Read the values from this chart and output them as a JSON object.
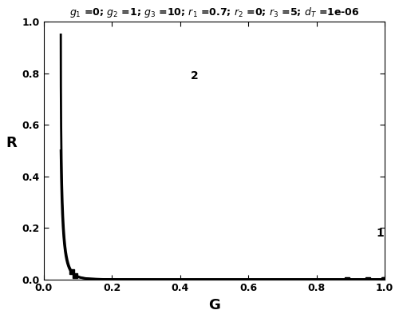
{
  "xlabel": "G",
  "ylabel": "R",
  "xlim": [
    0,
    1
  ],
  "ylim": [
    0,
    1
  ],
  "xticks": [
    0,
    0.2,
    0.4,
    0.6,
    0.8,
    1.0
  ],
  "yticks": [
    0,
    0.2,
    0.4,
    0.6,
    0.8,
    1.0
  ],
  "line_color": "#000000",
  "linewidth": 2.0,
  "background_color": "#ffffff",
  "label1": "1",
  "label2": "2",
  "title": "$g_1$ =0; $g_2$ =1; $g_3$ =10; $r_1$ =0.7; $r_2$ =0; $r_3$ =5; $d_T$ =1e-06"
}
